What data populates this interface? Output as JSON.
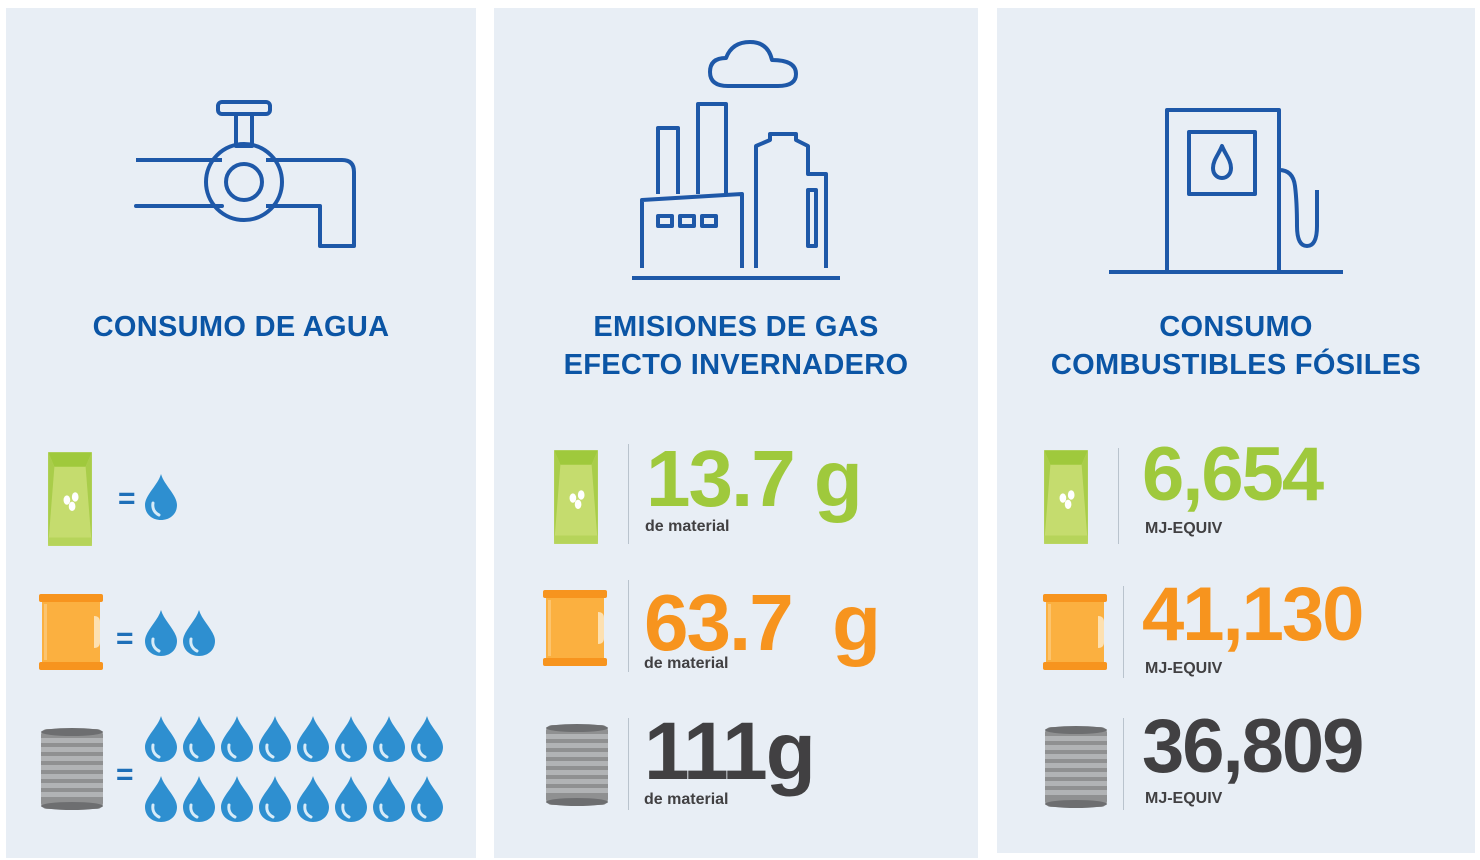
{
  "colors": {
    "panel_bg": "#e8eef5",
    "title_blue": "#0b55a5",
    "icon_blue": "#1e58a8",
    "drop_blue": "#2e8fd0",
    "green": "#9fc93c",
    "orange": "#f7941e",
    "dark": "#414042"
  },
  "water": {
    "title": "CONSUMO DE AGUA",
    "hero_icon": "faucet-icon",
    "rows": [
      {
        "icon": "coffee-bag-icon",
        "equals": "=",
        "drops": 1
      },
      {
        "icon": "coffee-jar-icon",
        "equals": "=",
        "drops": 2
      },
      {
        "icon": "coffee-can-icon",
        "equals": "=",
        "drops": 16
      }
    ]
  },
  "emissions": {
    "title_line1": "EMISIONES DE GAS",
    "title_line2": "EFECTO INVERNADERO",
    "hero_icon": "factory-icon",
    "rows": [
      {
        "icon": "coffee-bag-icon",
        "value": "13.7 g",
        "unit": "de material",
        "color": "green"
      },
      {
        "icon": "coffee-jar-icon",
        "value": "63.7  g",
        "unit": "de material",
        "color": "orange"
      },
      {
        "icon": "coffee-can-icon",
        "value": "111g",
        "unit": "de material",
        "color": "dark"
      }
    ]
  },
  "fuel": {
    "title_line1": "CONSUMO",
    "title_line2": "COMBUSTIBLES FÓSILES",
    "hero_icon": "fuel-pump-icon",
    "rows": [
      {
        "icon": "coffee-bag-icon",
        "value": "6,654",
        "unit": "MJ-EQUIV",
        "color": "green"
      },
      {
        "icon": "coffee-jar-icon",
        "value": "41,130",
        "unit": "MJ-EQUIV",
        "color": "orange"
      },
      {
        "icon": "coffee-can-icon",
        "value": "36,809",
        "unit": "MJ-EQUIV",
        "color": "dark"
      }
    ]
  }
}
